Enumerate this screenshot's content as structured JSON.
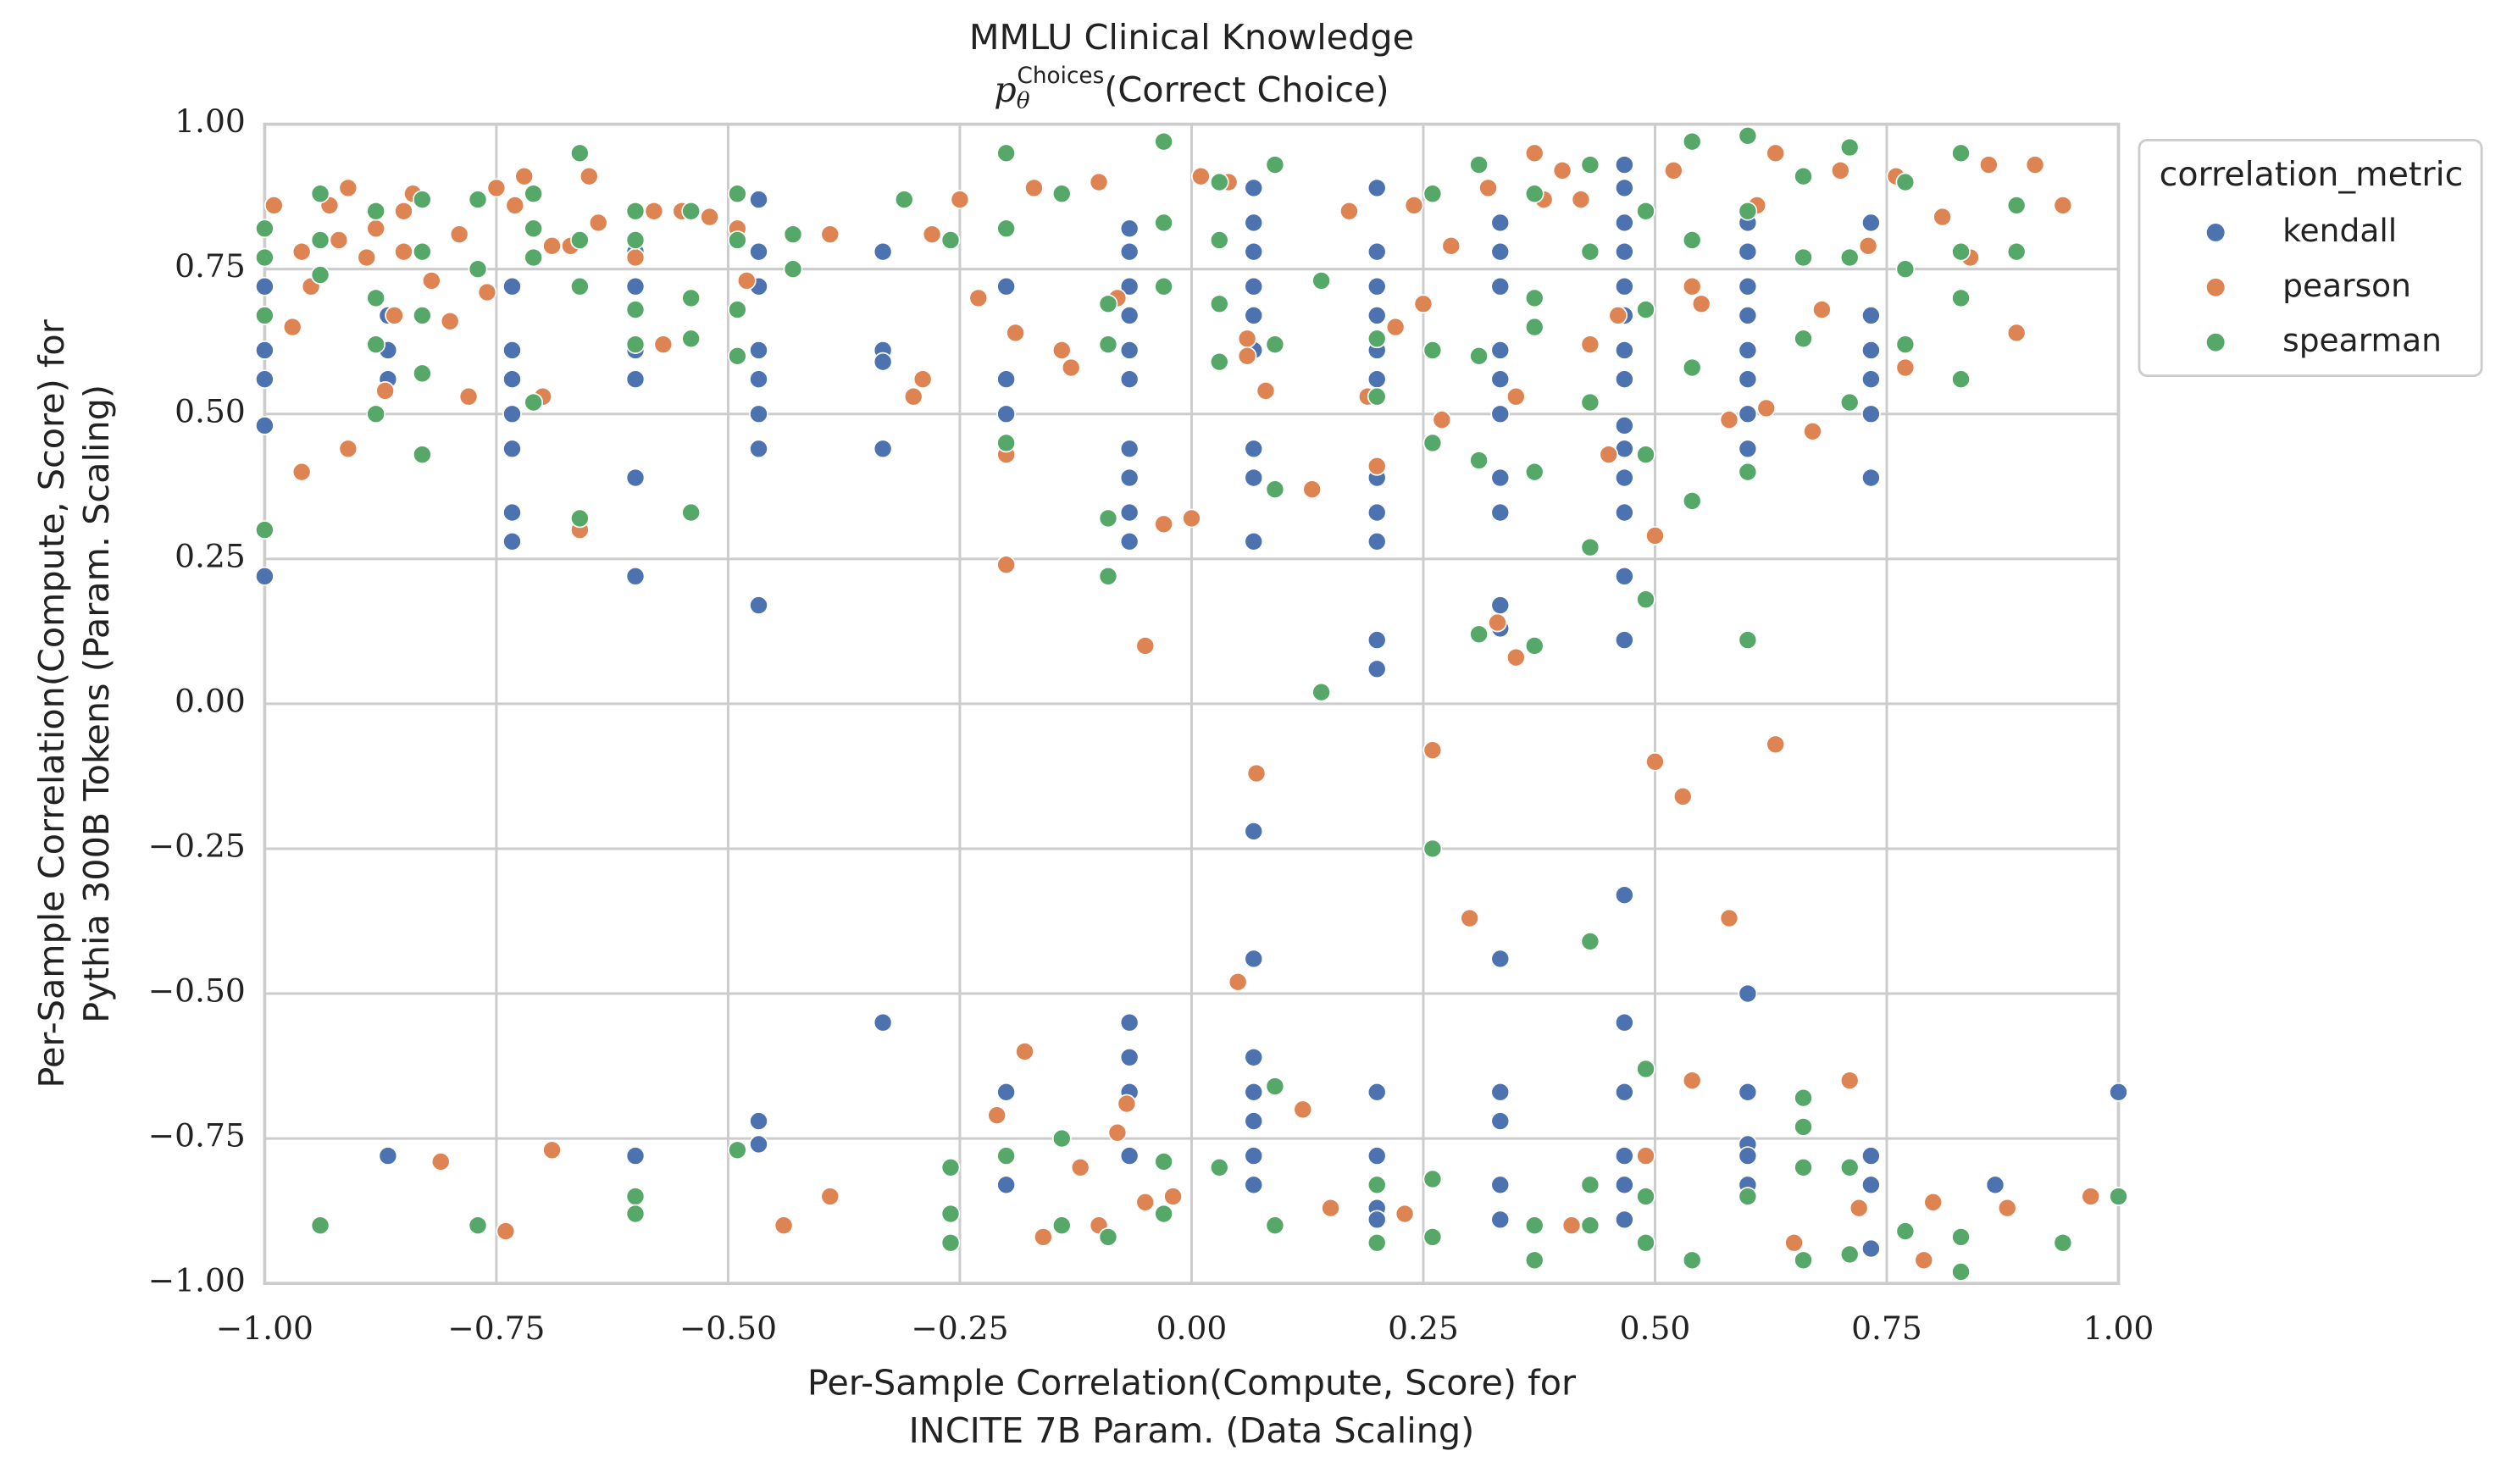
{
  "chart_data": {
    "type": "scatter",
    "title": "MMLU Clinical Knowledge",
    "subtitle": {
      "base": "p",
      "sub": "θ",
      "sup": "Choices",
      "rest": "(Correct Choice)"
    },
    "xlabel": [
      "Per-Sample Correlation(Compute, Score) for",
      "INCITE 7B Param. (Data Scaling)"
    ],
    "ylabel": [
      "Per-Sample Correlation(Compute, Score) for",
      "Pythia 300B Tokens (Param. Scaling)"
    ],
    "xlim": [
      -1,
      1
    ],
    "ylim": [
      -1,
      1
    ],
    "xticks": [
      {
        "value": -1,
        "label": "−1.00"
      },
      {
        "value": -0.75,
        "label": "−0.75"
      },
      {
        "value": -0.5,
        "label": "−0.50"
      },
      {
        "value": -0.25,
        "label": "−0.25"
      },
      {
        "value": 0,
        "label": "0.00"
      },
      {
        "value": 0.25,
        "label": "0.25"
      },
      {
        "value": 0.5,
        "label": "0.50"
      },
      {
        "value": 0.75,
        "label": "0.75"
      },
      {
        "value": 1,
        "label": "1.00"
      }
    ],
    "yticks": [
      {
        "value": -1,
        "label": "−1.00"
      },
      {
        "value": -0.75,
        "label": "−0.75"
      },
      {
        "value": -0.5,
        "label": "−0.50"
      },
      {
        "value": -0.25,
        "label": "−0.25"
      },
      {
        "value": 0,
        "label": "0.00"
      },
      {
        "value": 0.25,
        "label": "0.25"
      },
      {
        "value": 0.5,
        "label": "0.50"
      },
      {
        "value": 0.75,
        "label": "0.75"
      },
      {
        "value": 1,
        "label": "1.00"
      }
    ],
    "grid": true,
    "legend": {
      "title": "correlation_metric",
      "position": "outside"
    },
    "series": [
      {
        "name": "kendall",
        "color": "#4c72b0",
        "x": [
          -1,
          -1,
          -1,
          -1,
          -1,
          -0.867,
          -0.867,
          -0.867,
          -0.867,
          -0.733,
          -0.733,
          -0.733,
          -0.733,
          -0.733,
          -0.733,
          -0.733,
          -0.6,
          -0.6,
          -0.6,
          -0.6,
          -0.6,
          -0.6,
          -0.6,
          -0.467,
          -0.467,
          -0.467,
          -0.467,
          -0.467,
          -0.467,
          -0.467,
          -0.467,
          -0.467,
          -0.467,
          -0.333,
          -0.333,
          -0.333,
          -0.333,
          -0.333,
          -0.2,
          -0.2,
          -0.2,
          -0.2,
          -0.2,
          -0.067,
          -0.067,
          -0.067,
          -0.067,
          -0.067,
          -0.067,
          -0.067,
          -0.067,
          -0.067,
          -0.067,
          -0.067,
          -0.067,
          -0.067,
          -0.067,
          0.067,
          0.067,
          0.067,
          0.067,
          0.067,
          0.067,
          0.067,
          0.067,
          0.067,
          0.067,
          0.067,
          0.067,
          0.067,
          0.067,
          0.067,
          0.067,
          0.2,
          0.2,
          0.2,
          0.2,
          0.2,
          0.2,
          0.2,
          0.2,
          0.2,
          0.2,
          0.2,
          0.2,
          0.2,
          0.2,
          0.2,
          0.333,
          0.333,
          0.333,
          0.333,
          0.333,
          0.333,
          0.333,
          0.333,
          0.333,
          0.333,
          0.333,
          0.333,
          0.333,
          0.333,
          0.333,
          0.467,
          0.467,
          0.467,
          0.467,
          0.467,
          0.467,
          0.467,
          0.467,
          0.467,
          0.467,
          0.467,
          0.467,
          0.467,
          0.467,
          0.467,
          0.467,
          0.467,
          0.467,
          0.467,
          0.467,
          0.6,
          0.6,
          0.6,
          0.6,
          0.6,
          0.6,
          0.6,
          0.6,
          0.6,
          0.6,
          0.6,
          0.6,
          0.6,
          0.733,
          0.733,
          0.733,
          0.733,
          0.733,
          0.733,
          0.733,
          0.733,
          0.733,
          0.867,
          1
        ],
        "values": [
          0.72,
          0.61,
          0.56,
          0.48,
          0.22,
          0.67,
          0.61,
          0.56,
          -0.78,
          0.72,
          0.61,
          0.56,
          0.5,
          0.44,
          0.33,
          0.28,
          0.78,
          0.72,
          0.61,
          0.56,
          0.39,
          0.22,
          -0.78,
          0.87,
          0.78,
          0.72,
          0.61,
          0.56,
          0.5,
          0.44,
          0.17,
          -0.72,
          -0.76,
          0.78,
          0.61,
          0.59,
          0.44,
          -0.55,
          0.72,
          0.56,
          0.5,
          -0.67,
          -0.83,
          0.82,
          0.78,
          0.72,
          0.67,
          0.61,
          0.56,
          0.44,
          0.39,
          0.33,
          0.28,
          -0.55,
          -0.61,
          -0.67,
          -0.78,
          0.89,
          0.83,
          0.78,
          0.72,
          0.67,
          0.61,
          0.44,
          0.39,
          0.28,
          -0.22,
          -0.44,
          -0.61,
          -0.67,
          -0.72,
          -0.78,
          -0.83,
          0.89,
          0.78,
          0.72,
          0.67,
          0.61,
          0.56,
          0.39,
          0.33,
          0.28,
          0.11,
          0.06,
          -0.67,
          -0.78,
          -0.87,
          -0.89,
          0.83,
          0.78,
          0.72,
          0.61,
          0.56,
          0.5,
          0.39,
          0.33,
          0.17,
          0.13,
          -0.44,
          -0.67,
          -0.72,
          -0.83,
          -0.89,
          0.93,
          0.89,
          0.83,
          0.78,
          0.72,
          0.67,
          0.61,
          0.56,
          0.48,
          0.44,
          0.39,
          0.33,
          0.22,
          0.11,
          -0.33,
          -0.55,
          -0.67,
          -0.78,
          -0.83,
          -0.89,
          0.83,
          0.78,
          0.72,
          0.67,
          0.61,
          0.56,
          0.5,
          0.44,
          -0.5,
          -0.67,
          -0.76,
          -0.78,
          -0.83,
          0.83,
          0.67,
          0.61,
          0.56,
          0.5,
          0.39,
          -0.78,
          -0.83,
          -0.94,
          -0.83,
          -0.67
        ]
      },
      {
        "name": "pearson",
        "color": "#dd8452",
        "x": [
          -0.99,
          -0.97,
          -0.96,
          -0.96,
          -0.95,
          -0.93,
          -0.92,
          -0.91,
          -0.91,
          -0.89,
          -0.88,
          -0.87,
          -0.86,
          -0.85,
          -0.85,
          -0.84,
          -0.82,
          -0.81,
          -0.8,
          -0.79,
          -0.78,
          -0.76,
          -0.75,
          -0.74,
          -0.73,
          -0.72,
          -0.7,
          -0.69,
          -0.69,
          -0.67,
          -0.66,
          -0.65,
          -0.64,
          -0.6,
          -0.58,
          -0.57,
          -0.55,
          -0.52,
          -0.49,
          -0.48,
          -0.44,
          -0.39,
          -0.39,
          -0.3,
          -0.29,
          -0.28,
          -0.25,
          -0.23,
          -0.21,
          -0.2,
          -0.2,
          -0.19,
          -0.18,
          -0.17,
          -0.16,
          -0.14,
          -0.13,
          -0.12,
          -0.1,
          -0.1,
          -0.08,
          -0.08,
          -0.07,
          -0.05,
          -0.05,
          -0.03,
          -0.02,
          0,
          0.01,
          0.04,
          0.05,
          0.06,
          0.06,
          0.07,
          0.08,
          0.12,
          0.13,
          0.15,
          0.17,
          0.19,
          0.2,
          0.22,
          0.23,
          0.24,
          0.25,
          0.26,
          0.27,
          0.28,
          0.3,
          0.32,
          0.33,
          0.35,
          0.35,
          0.37,
          0.38,
          0.4,
          0.41,
          0.42,
          0.43,
          0.45,
          0.46,
          0.49,
          0.5,
          0.5,
          0.52,
          0.53,
          0.54,
          0.54,
          0.55,
          0.58,
          0.58,
          0.61,
          0.62,
          0.63,
          0.63,
          0.65,
          0.67,
          0.68,
          0.7,
          0.71,
          0.72,
          0.73,
          0.76,
          0.77,
          0.79,
          0.8,
          0.81,
          0.84,
          0.86,
          0.88,
          0.89,
          0.91,
          0.94,
          0.97
        ],
        "values": [
          0.86,
          0.65,
          0.78,
          0.4,
          0.72,
          0.86,
          0.8,
          0.89,
          0.44,
          0.77,
          0.82,
          0.54,
          0.67,
          0.85,
          0.78,
          0.88,
          0.73,
          -0.79,
          0.66,
          0.81,
          0.53,
          0.71,
          0.89,
          -0.91,
          0.86,
          0.91,
          0.53,
          0.79,
          -0.77,
          0.79,
          0.3,
          0.91,
          0.83,
          0.77,
          0.85,
          0.62,
          0.85,
          0.84,
          0.82,
          0.73,
          -0.9,
          0.81,
          -0.85,
          0.53,
          0.56,
          0.81,
          0.87,
          0.7,
          -0.71,
          0.43,
          0.24,
          0.64,
          -0.6,
          0.89,
          -0.92,
          0.61,
          0.58,
          -0.8,
          0.9,
          -0.9,
          0.7,
          -0.74,
          -0.69,
          0.1,
          -0.86,
          0.31,
          -0.85,
          0.32,
          0.91,
          0.9,
          -0.48,
          0.63,
          0.6,
          -0.12,
          0.54,
          -0.7,
          0.37,
          -0.87,
          0.85,
          0.53,
          0.41,
          0.65,
          -0.88,
          0.86,
          0.69,
          -0.08,
          0.49,
          0.79,
          -0.37,
          0.89,
          0.14,
          0.08,
          0.53,
          0.95,
          0.87,
          0.92,
          -0.9,
          0.87,
          0.62,
          0.43,
          0.67,
          -0.78,
          0.29,
          -0.1,
          0.92,
          -0.16,
          -0.65,
          0.72,
          0.69,
          -0.37,
          0.49,
          0.86,
          0.51,
          -0.07,
          0.95,
          -0.93,
          0.47,
          0.68,
          0.92,
          -0.65,
          -0.87,
          0.79,
          0.91,
          0.58,
          -0.96,
          -0.86,
          0.84,
          0.77,
          0.93,
          -0.87,
          0.64,
          0.93,
          0.86,
          -0.85
        ]
      },
      {
        "name": "spearman",
        "color": "#55a868",
        "x": [
          -1,
          -1,
          -1,
          -1,
          -0.94,
          -0.94,
          -0.94,
          -0.94,
          -0.88,
          -0.88,
          -0.88,
          -0.88,
          -0.83,
          -0.83,
          -0.83,
          -0.83,
          -0.83,
          -0.77,
          -0.77,
          -0.77,
          -0.71,
          -0.71,
          -0.71,
          -0.71,
          -0.66,
          -0.66,
          -0.66,
          -0.66,
          -0.6,
          -0.6,
          -0.6,
          -0.6,
          -0.6,
          -0.6,
          -0.54,
          -0.54,
          -0.54,
          -0.54,
          -0.49,
          -0.49,
          -0.49,
          -0.49,
          -0.49,
          -0.43,
          -0.43,
          -0.31,
          -0.26,
          -0.26,
          -0.26,
          -0.26,
          -0.2,
          -0.2,
          -0.2,
          -0.2,
          -0.14,
          -0.14,
          -0.14,
          -0.09,
          -0.09,
          -0.09,
          -0.09,
          -0.09,
          -0.03,
          -0.03,
          -0.03,
          -0.03,
          -0.03,
          0.03,
          0.03,
          0.03,
          0.03,
          0.03,
          0.09,
          0.09,
          0.09,
          0.09,
          0.09,
          0.14,
          0.14,
          0.2,
          0.2,
          0.2,
          0.2,
          0.26,
          0.26,
          0.26,
          0.26,
          0.26,
          0.26,
          0.31,
          0.31,
          0.31,
          0.31,
          0.37,
          0.37,
          0.37,
          0.37,
          0.37,
          0.37,
          0.37,
          0.43,
          0.43,
          0.43,
          0.43,
          0.43,
          0.43,
          0.43,
          0.49,
          0.49,
          0.49,
          0.49,
          0.49,
          0.49,
          0.49,
          0.54,
          0.54,
          0.54,
          0.54,
          0.54,
          0.6,
          0.6,
          0.6,
          0.6,
          0.6,
          0.66,
          0.66,
          0.66,
          0.66,
          0.66,
          0.66,
          0.66,
          0.71,
          0.71,
          0.71,
          0.71,
          0.71,
          0.77,
          0.77,
          0.77,
          0.77,
          0.83,
          0.83,
          0.83,
          0.83,
          0.83,
          0.83,
          0.89,
          0.89,
          0.94,
          1
        ],
        "values": [
          0.82,
          0.77,
          0.67,
          0.3,
          0.88,
          0.8,
          0.74,
          -0.9,
          0.85,
          0.7,
          0.62,
          0.5,
          0.87,
          0.78,
          0.67,
          0.57,
          0.43,
          0.87,
          0.75,
          -0.9,
          0.88,
          0.82,
          0.77,
          0.52,
          0.95,
          0.8,
          0.72,
          0.32,
          0.85,
          0.8,
          0.68,
          0.62,
          -0.85,
          -0.88,
          0.85,
          0.7,
          0.63,
          0.33,
          0.88,
          0.8,
          0.68,
          0.6,
          -0.77,
          0.81,
          0.75,
          0.87,
          0.8,
          -0.8,
          -0.88,
          -0.93,
          0.95,
          0.82,
          0.45,
          -0.78,
          0.88,
          -0.75,
          -0.9,
          0.69,
          0.62,
          0.32,
          0.22,
          -0.92,
          0.97,
          0.83,
          0.72,
          -0.79,
          -0.88,
          0.9,
          0.8,
          0.69,
          0.59,
          -0.8,
          0.93,
          0.62,
          0.37,
          -0.66,
          -0.9,
          0.73,
          0.02,
          0.63,
          0.53,
          -0.83,
          -0.93,
          0.88,
          0.61,
          0.45,
          -0.25,
          -0.82,
          -0.92,
          0.93,
          0.6,
          0.42,
          0.12,
          0.88,
          0.7,
          0.65,
          0.4,
          0.1,
          -0.9,
          -0.96,
          0.93,
          0.78,
          0.52,
          0.27,
          -0.41,
          -0.83,
          -0.9,
          0.85,
          0.68,
          0.43,
          0.18,
          -0.63,
          -0.85,
          -0.93,
          0.97,
          0.8,
          0.58,
          0.35,
          -0.96,
          0.98,
          0.85,
          0.4,
          0.11,
          -0.85,
          0.91,
          0.77,
          0.63,
          -0.68,
          -0.73,
          -0.8,
          -0.96,
          0.96,
          0.77,
          0.52,
          -0.8,
          -0.95,
          0.9,
          0.75,
          0.62,
          -0.91,
          0.95,
          0.78,
          0.7,
          0.56,
          -0.92,
          -0.98,
          0.86,
          0.78,
          -0.93,
          -0.85
        ]
      }
    ]
  }
}
